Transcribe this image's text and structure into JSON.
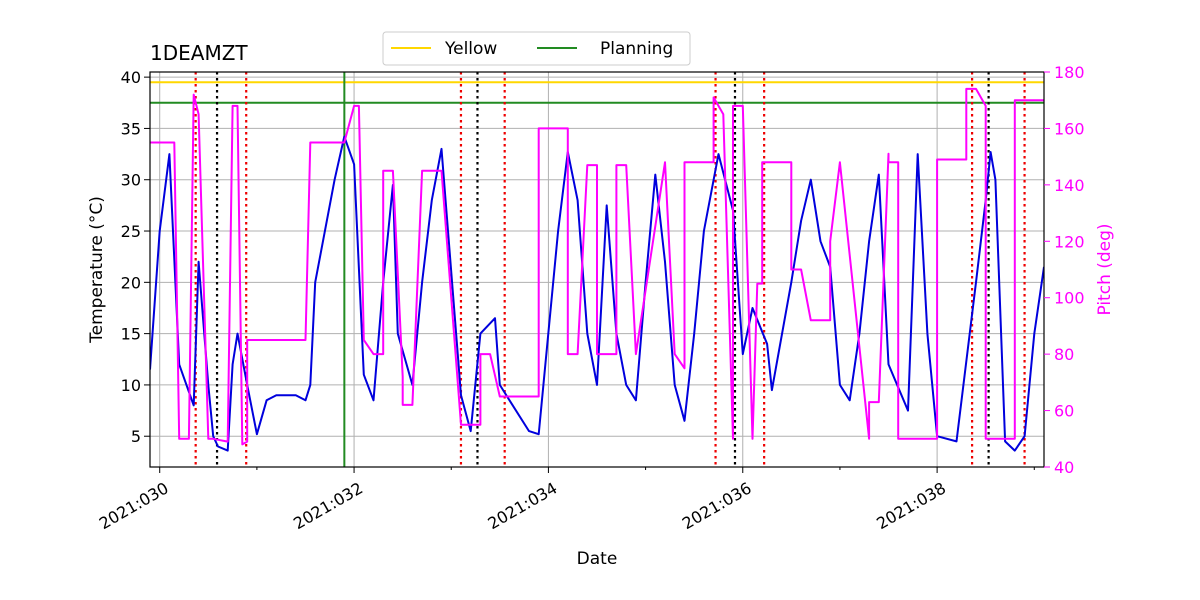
{
  "chart_data": {
    "type": "line",
    "title": "1DEAMZT",
    "xlabel": "Date",
    "ylabel_left": "Temperature ($^\\circ$C)",
    "ylabel_left_display": "Temperature (°C)",
    "ylabel_right": "Pitch (deg)",
    "xlim": [
      2021.0299,
      2021.0391
    ],
    "ylim_left": [
      2,
      40.5
    ],
    "ylim_right": [
      40,
      180
    ],
    "x_ticks": [
      {
        "value": 2021.03,
        "label": "2021:030"
      },
      {
        "value": 2021.032,
        "label": "2021:032"
      },
      {
        "value": 2021.034,
        "label": "2021:034"
      },
      {
        "value": 2021.036,
        "label": "2021:036"
      },
      {
        "value": 2021.038,
        "label": "2021:038"
      }
    ],
    "y_left_ticks": [
      5,
      10,
      15,
      20,
      25,
      30,
      35,
      40
    ],
    "y_right_ticks": [
      40,
      60,
      80,
      100,
      120,
      140,
      160,
      180
    ],
    "grid": true,
    "legend_placement": "top-center",
    "colors": {
      "temperature": "#0000dd",
      "pitch": "#ff00ff",
      "yellow_limit": "#ffd700",
      "planning_limit": "#228b22",
      "red_marker": "#ee0000",
      "black_marker": "#000000",
      "grid": "#b0b0b0"
    },
    "limits": [
      {
        "name": "Yellow",
        "value": 39.5,
        "color": "#ffd700"
      },
      {
        "name": "Planning",
        "value": 37.5,
        "color": "#228b22"
      }
    ],
    "planning_vline": 2021.0319,
    "red_dotted_lines": [
      2021.03037,
      2021.03089,
      2021.0331,
      2021.03355,
      2021.03572,
      2021.03622,
      2021.03836,
      2021.0389
    ],
    "black_dotted_lines": [
      2021.03059,
      2021.03327,
      2021.03592,
      2021.03853
    ],
    "series": [
      {
        "name": "Temperature",
        "axis": "left",
        "x": [
          2021.0299,
          2021.03,
          2021.0301,
          2021.0302,
          2021.03035,
          2021.0304,
          2021.0305,
          2021.03055,
          2021.0306,
          2021.0307,
          2021.03075,
          2021.0308,
          2021.0309,
          2021.031,
          2021.0311,
          2021.0312,
          2021.0314,
          2021.0315,
          2021.03155,
          2021.0316,
          2021.0318,
          2021.0319,
          2021.032,
          2021.0321,
          2021.0322,
          2021.0323,
          2021.0324,
          2021.03245,
          2021.0326,
          2021.0327,
          2021.0328,
          2021.0329,
          2021.0331,
          2021.0332,
          2021.0333,
          2021.03345,
          2021.0335,
          2021.0336,
          2021.0338,
          2021.0339,
          2021.0341,
          2021.0342,
          2021.0343,
          2021.0344,
          2021.0345,
          2021.0346,
          2021.0347,
          2021.0348,
          2021.0349,
          2021.035,
          2021.0351,
          2021.0352,
          2021.0353,
          2021.0354,
          2021.0355,
          2021.0356,
          2021.03575,
          2021.0359,
          2021.036,
          2021.0361,
          2021.03625,
          2021.0363,
          2021.0365,
          2021.0366,
          2021.0367,
          2021.0368,
          2021.0369,
          2021.037,
          2021.0371,
          2021.0372,
          2021.0373,
          2021.0374,
          2021.0375,
          2021.0377,
          2021.0378,
          2021.0379,
          2021.038,
          2021.0382,
          2021.0384,
          2021.0385,
          2021.03855,
          2021.0386,
          2021.0387,
          2021.0388,
          2021.0389,
          2021.039,
          2021.0391
        ],
        "y": [
          11.5,
          25,
          32.5,
          12,
          8,
          22,
          10,
          5,
          4,
          3.6,
          12,
          15,
          10,
          5.2,
          8.5,
          9,
          9,
          8.5,
          10,
          20,
          30,
          34.2,
          31.5,
          11,
          8.5,
          20,
          29.5,
          15,
          10,
          20,
          28,
          33,
          9,
          5.5,
          15,
          16.5,
          10,
          8.5,
          5.5,
          5.2,
          25,
          32.7,
          28,
          15,
          10,
          27.5,
          15,
          10,
          8.5,
          20,
          30.5,
          22,
          10,
          6.5,
          15,
          25,
          32.5,
          27,
          13,
          17.5,
          14,
          9.5,
          20,
          26,
          30,
          24,
          21.5,
          10,
          8.5,
          15,
          24,
          30.5,
          12,
          7.5,
          32.5,
          15,
          5,
          4.5,
          20,
          28,
          32.7,
          30,
          4.5,
          3.6,
          5,
          15,
          21.5
        ]
      },
      {
        "name": "Pitch",
        "axis": "right",
        "x": [
          2021.0299,
          2021.0301,
          2021.03015,
          2021.0302,
          2021.0303,
          2021.03035,
          2021.0304,
          2021.0305,
          2021.03055,
          2021.0307,
          2021.03075,
          2021.0308,
          2021.03085,
          2021.0309,
          2021.0309,
          2021.031,
          2021.0311,
          2021.0315,
          2021.03155,
          2021.0319,
          2021.032,
          2021.03205,
          2021.0321,
          2021.0322,
          2021.0323,
          2021.0323,
          2021.0324,
          2021.0325,
          2021.0325,
          2021.0326,
          2021.0327,
          2021.0327,
          2021.0329,
          2021.0331,
          2021.0331,
          2021.0333,
          2021.0333,
          2021.0334,
          2021.0335,
          2021.0335,
          2021.0336,
          2021.0337,
          2021.0339,
          2021.0339,
          2021.0342,
          2021.0342,
          2021.0343,
          2021.0344,
          2021.0345,
          2021.0345,
          2021.0347,
          2021.0347,
          2021.0348,
          2021.0349,
          2021.0349,
          2021.0352,
          2021.0352,
          2021.0353,
          2021.0354,
          2021.0354,
          2021.0357,
          2021.0357,
          2021.0358,
          2021.0359,
          2021.0359,
          2021.036,
          2021.0361,
          2021.0361,
          2021.03615,
          2021.0362,
          2021.0362,
          2021.0365,
          2021.0365,
          2021.0366,
          2021.0367,
          2021.0367,
          2021.0369,
          2021.0369,
          2021.037,
          2021.037,
          2021.0373,
          2021.0373,
          2021.0373,
          2021.0374,
          2021.0375,
          2021.0375,
          2021.0376,
          2021.0376,
          2021.0378,
          2021.0378,
          2021.038,
          2021.038,
          2021.0383,
          2021.0383,
          2021.0384,
          2021.0385,
          2021.0385,
          2021.0386,
          2021.0387,
          2021.0388,
          2021.0388,
          2021.0391
        ],
        "y": [
          155,
          155,
          155,
          50,
          50,
          172,
          165,
          50,
          50,
          49,
          168,
          168,
          48,
          49,
          85,
          85,
          85,
          85,
          155,
          155,
          168,
          168,
          85,
          80,
          80,
          145,
          145,
          72,
          62,
          62,
          145,
          145,
          145,
          55,
          55,
          55,
          80,
          80,
          65,
          65,
          65,
          65,
          65,
          160,
          160,
          80,
          80,
          147,
          147,
          80,
          80,
          147,
          147,
          80,
          80,
          148,
          148,
          80,
          75,
          148,
          148,
          171,
          165,
          50,
          168,
          168,
          50,
          50,
          105,
          105,
          148,
          148,
          110,
          110,
          92,
          92,
          92,
          120,
          148,
          148,
          50,
          63,
          63,
          63,
          151,
          148,
          148,
          50,
          50,
          50,
          50,
          149,
          149,
          174,
          174,
          168,
          50,
          50,
          50,
          50,
          170,
          170
        ]
      }
    ]
  }
}
